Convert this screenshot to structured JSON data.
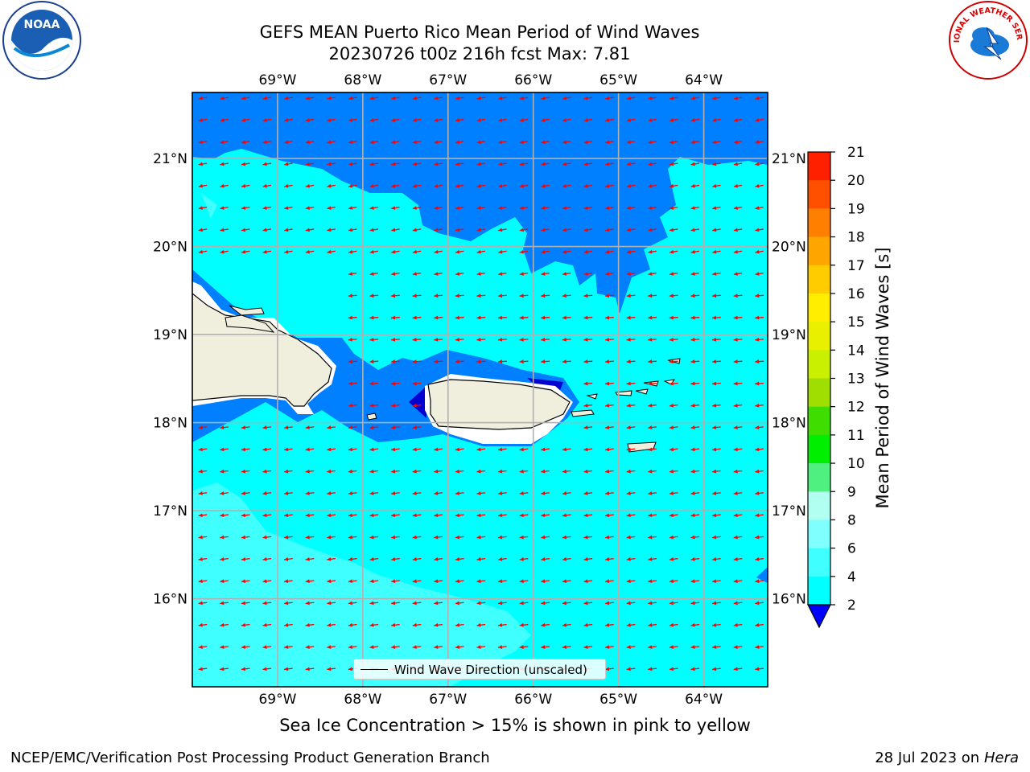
{
  "title": {
    "line1": "GEFS MEAN Puerto Rico Mean Period of Wind Waves",
    "line2": "20230726 t00z 216h fcst   Max: 7.81"
  },
  "logos": {
    "left": {
      "icon": "noaa-logo-icon",
      "text": "NOAA"
    },
    "right": {
      "icon": "nws-logo-icon",
      "text": "NATIONAL WEATHER SERVICE"
    }
  },
  "map": {
    "lon_ticks": [
      "69°W",
      "68°W",
      "67°W",
      "66°W",
      "65°W",
      "64°W"
    ],
    "lat_ticks": [
      "21°N",
      "20°N",
      "19°N",
      "18°N",
      "17°N",
      "16°N"
    ],
    "lon_values": [
      -69,
      -68,
      -67,
      -66,
      -65,
      -64
    ],
    "lat_values": [
      21,
      20,
      19,
      18,
      17,
      16
    ],
    "extent": {
      "lon_min": -70.0,
      "lon_max": -63.25,
      "lat_min": 15.0,
      "lat_max": 21.75
    },
    "legend_label": "Wind Wave Direction (unscaled)",
    "colors": {
      "deep_blue": "#0000d0",
      "blue": "#0080ff",
      "cyan": "#00ffff",
      "light_cyan": "#40ffff",
      "land": "#f0eedd",
      "arrow": "#ff0000",
      "grid": "#b0b0b0"
    }
  },
  "colorbar": {
    "label": "Mean Period of Wind Waves [s]",
    "ticks": [
      "2",
      "4",
      "6",
      "8",
      "9",
      "10",
      "11",
      "12",
      "13",
      "14",
      "15",
      "16",
      "17",
      "18",
      "19",
      "20",
      "21"
    ],
    "colors": [
      "#0080ff",
      "#00ffff",
      "#40ffff",
      "#80ffff",
      "#b0fff0",
      "#50f080",
      "#00ee00",
      "#40dd00",
      "#a0dd00",
      "#c8f000",
      "#e8f000",
      "#ffee00",
      "#ffcc00",
      "#ffa500",
      "#ff8000",
      "#ff5000",
      "#ff2000",
      "#ff0000"
    ],
    "under_color": "#0000ff"
  },
  "notes": {
    "sea_ice": "Sea Ice Concentration > 15% is shown in pink to yellow"
  },
  "footer": {
    "left": "NCEP/EMC/Verification Post Processing Product Generation Branch",
    "right_date": "28 Jul 2023 on ",
    "right_host": "Hera"
  }
}
